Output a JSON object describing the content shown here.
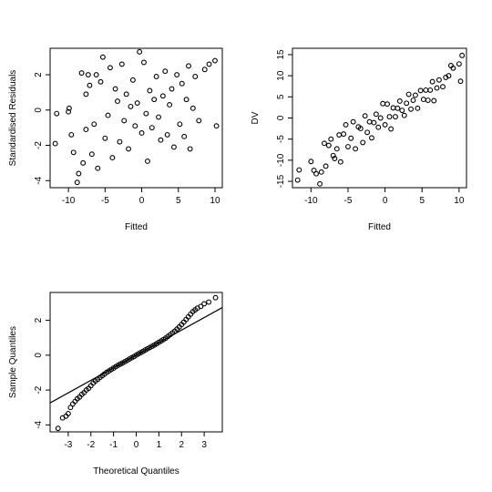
{
  "chart_data": [
    {
      "type": "scatter",
      "xlabel": "Fitted",
      "ylabel": "Standardised Residuals",
      "xlim": [
        -12.5,
        11
      ],
      "ylim": [
        -4.4,
        3.5
      ],
      "x_ticks": [
        -10,
        -5,
        0,
        5,
        10
      ],
      "y_ticks": [
        -4,
        -2,
        0,
        2
      ],
      "grid": false,
      "points": [
        [
          -11.6,
          -0.2
        ],
        [
          -11.8,
          -1.9
        ],
        [
          -10.0,
          -0.1
        ],
        [
          -9.9,
          0.1
        ],
        [
          -9.6,
          -1.4
        ],
        [
          -9.3,
          -2.4
        ],
        [
          -8.8,
          -4.1
        ],
        [
          -8.6,
          -3.6
        ],
        [
          -8.2,
          2.1
        ],
        [
          -8.0,
          -3.0
        ],
        [
          -7.6,
          0.9
        ],
        [
          -7.6,
          -1.1
        ],
        [
          -7.3,
          2.0
        ],
        [
          -7.1,
          1.4
        ],
        [
          -6.8,
          -2.5
        ],
        [
          -6.5,
          -0.8
        ],
        [
          -6.2,
          2.0
        ],
        [
          -6.0,
          -3.3
        ],
        [
          -5.6,
          1.6
        ],
        [
          -5.3,
          3.0
        ],
        [
          -5.0,
          -1.6
        ],
        [
          -4.6,
          -0.3
        ],
        [
          -4.3,
          2.4
        ],
        [
          -4.0,
          -2.7
        ],
        [
          -3.6,
          1.2
        ],
        [
          -3.3,
          0.5
        ],
        [
          -3.0,
          -1.8
        ],
        [
          -2.7,
          2.6
        ],
        [
          -2.4,
          -0.6
        ],
        [
          -2.1,
          0.9
        ],
        [
          -1.8,
          -2.2
        ],
        [
          -1.5,
          0.2
        ],
        [
          -1.2,
          1.7
        ],
        [
          -0.9,
          -0.9
        ],
        [
          -0.6,
          0.4
        ],
        [
          -0.3,
          3.3
        ],
        [
          0.0,
          -1.3
        ],
        [
          0.3,
          2.7
        ],
        [
          0.6,
          -0.2
        ],
        [
          0.8,
          -2.9
        ],
        [
          1.1,
          1.1
        ],
        [
          1.4,
          -1.0
        ],
        [
          1.7,
          0.6
        ],
        [
          2.0,
          1.9
        ],
        [
          2.3,
          -0.4
        ],
        [
          2.6,
          -1.7
        ],
        [
          2.9,
          0.8
        ],
        [
          3.2,
          2.2
        ],
        [
          3.5,
          -1.4
        ],
        [
          3.8,
          0.3
        ],
        [
          4.1,
          1.2
        ],
        [
          4.4,
          -2.1
        ],
        [
          4.8,
          2.0
        ],
        [
          5.2,
          -0.8
        ],
        [
          5.5,
          1.5
        ],
        [
          5.8,
          -1.5
        ],
        [
          6.1,
          0.6
        ],
        [
          6.4,
          2.5
        ],
        [
          6.6,
          -2.2
        ],
        [
          7.0,
          0.1
        ],
        [
          7.3,
          1.9
        ],
        [
          7.8,
          -0.6
        ],
        [
          8.6,
          2.3
        ],
        [
          9.2,
          2.6
        ],
        [
          10.0,
          2.8
        ],
        [
          10.2,
          -0.9
        ]
      ]
    },
    {
      "type": "scatter",
      "xlabel": "Fitted",
      "ylabel": "DV",
      "xlim": [
        -12.5,
        11
      ],
      "ylim": [
        -16.5,
        16.5
      ],
      "x_ticks": [
        -10,
        -5,
        0,
        5,
        10
      ],
      "y_ticks": [
        -15,
        -10,
        -5,
        0,
        5,
        10,
        15
      ],
      "grid": false,
      "points": [
        [
          -11.6,
          -12.3
        ],
        [
          -11.8,
          -14.7
        ],
        [
          -10.0,
          -10.3
        ],
        [
          -9.6,
          -12.4
        ],
        [
          -9.3,
          -13.2
        ],
        [
          -8.8,
          -15.6
        ],
        [
          -8.6,
          -12.8
        ],
        [
          -8.2,
          -6.0
        ],
        [
          -8.0,
          -11.4
        ],
        [
          -7.6,
          -6.5
        ],
        [
          -7.3,
          -5.0
        ],
        [
          -7.0,
          -8.9
        ],
        [
          -6.8,
          -9.6
        ],
        [
          -6.5,
          -7.3
        ],
        [
          -6.2,
          -4.0
        ],
        [
          -6.0,
          -10.4
        ],
        [
          -5.6,
          -3.8
        ],
        [
          -5.3,
          -1.6
        ],
        [
          -5.0,
          -6.8
        ],
        [
          -4.6,
          -4.8
        ],
        [
          -4.3,
          -0.9
        ],
        [
          -4.0,
          -7.3
        ],
        [
          -3.6,
          -2.1
        ],
        [
          -3.3,
          -2.5
        ],
        [
          -3.0,
          -5.8
        ],
        [
          -2.7,
          0.5
        ],
        [
          -2.4,
          -3.4
        ],
        [
          -2.1,
          -0.9
        ],
        [
          -1.8,
          -4.7
        ],
        [
          -1.5,
          -1.1
        ],
        [
          -1.2,
          0.9
        ],
        [
          -0.9,
          -2.2
        ],
        [
          -0.6,
          0.0
        ],
        [
          -0.3,
          3.4
        ],
        [
          0.0,
          -1.6
        ],
        [
          0.3,
          3.3
        ],
        [
          0.6,
          0.3
        ],
        [
          0.8,
          -2.6
        ],
        [
          1.1,
          2.4
        ],
        [
          1.4,
          0.3
        ],
        [
          1.7,
          2.3
        ],
        [
          2.0,
          4.0
        ],
        [
          2.3,
          1.8
        ],
        [
          2.6,
          0.6
        ],
        [
          2.9,
          3.5
        ],
        [
          3.2,
          5.6
        ],
        [
          3.5,
          2.1
        ],
        [
          3.8,
          4.2
        ],
        [
          4.1,
          5.4
        ],
        [
          4.4,
          2.3
        ],
        [
          4.8,
          6.5
        ],
        [
          5.2,
          4.4
        ],
        [
          5.5,
          6.6
        ],
        [
          5.8,
          4.2
        ],
        [
          6.1,
          6.6
        ],
        [
          6.4,
          8.6
        ],
        [
          6.6,
          4.1
        ],
        [
          7.0,
          7.1
        ],
        [
          7.3,
          9.0
        ],
        [
          7.8,
          7.4
        ],
        [
          8.2,
          9.6
        ],
        [
          8.6,
          10.0
        ],
        [
          8.9,
          12.4
        ],
        [
          9.2,
          11.8
        ],
        [
          10.0,
          12.8
        ],
        [
          10.2,
          8.7
        ],
        [
          10.4,
          14.8
        ]
      ]
    },
    {
      "type": "scatter",
      "xlabel": "Theoretical Quantiles",
      "ylabel": "Sample Quantiles",
      "xlim": [
        -3.8,
        3.8
      ],
      "ylim": [
        -4.4,
        3.6
      ],
      "x_ticks": [
        -3,
        -2,
        -1,
        0,
        1,
        2,
        3
      ],
      "y_ticks": [
        -4,
        -2,
        0,
        2
      ],
      "grid": false,
      "reference_line": {
        "intercept": 0,
        "slope": 0.72
      },
      "points": [
        [
          -3.45,
          -4.2
        ],
        [
          -3.25,
          -3.6
        ],
        [
          -3.1,
          -3.5
        ],
        [
          -3.0,
          -3.35
        ],
        [
          -2.9,
          -3.0
        ],
        [
          -2.8,
          -2.8
        ],
        [
          -2.7,
          -2.65
        ],
        [
          -2.6,
          -2.5
        ],
        [
          -2.5,
          -2.4
        ],
        [
          -2.4,
          -2.25
        ],
        [
          -2.3,
          -2.15
        ],
        [
          -2.2,
          -2.0
        ],
        [
          -2.1,
          -1.9
        ],
        [
          -2.0,
          -1.75
        ],
        [
          -1.9,
          -1.6
        ],
        [
          -1.8,
          -1.48
        ],
        [
          -1.7,
          -1.38
        ],
        [
          -1.6,
          -1.28
        ],
        [
          -1.5,
          -1.18
        ],
        [
          -1.4,
          -1.08
        ],
        [
          -1.3,
          -0.98
        ],
        [
          -1.2,
          -0.9
        ],
        [
          -1.1,
          -0.82
        ],
        [
          -1.0,
          -0.74
        ],
        [
          -0.9,
          -0.66
        ],
        [
          -0.8,
          -0.58
        ],
        [
          -0.7,
          -0.51
        ],
        [
          -0.6,
          -0.44
        ],
        [
          -0.5,
          -0.37
        ],
        [
          -0.4,
          -0.3
        ],
        [
          -0.3,
          -0.22
        ],
        [
          -0.2,
          -0.15
        ],
        [
          -0.1,
          -0.08
        ],
        [
          0.0,
          0.0
        ],
        [
          0.1,
          0.08
        ],
        [
          0.2,
          0.15
        ],
        [
          0.3,
          0.22
        ],
        [
          0.4,
          0.3
        ],
        [
          0.5,
          0.37
        ],
        [
          0.6,
          0.44
        ],
        [
          0.7,
          0.51
        ],
        [
          0.8,
          0.58
        ],
        [
          0.9,
          0.66
        ],
        [
          1.0,
          0.74
        ],
        [
          1.1,
          0.82
        ],
        [
          1.2,
          0.9
        ],
        [
          1.3,
          0.98
        ],
        [
          1.4,
          1.08
        ],
        [
          1.5,
          1.18
        ],
        [
          1.6,
          1.28
        ],
        [
          1.7,
          1.38
        ],
        [
          1.8,
          1.5
        ],
        [
          1.9,
          1.62
        ],
        [
          2.0,
          1.76
        ],
        [
          2.1,
          1.9
        ],
        [
          2.2,
          2.05
        ],
        [
          2.3,
          2.2
        ],
        [
          2.4,
          2.35
        ],
        [
          2.5,
          2.5
        ],
        [
          2.6,
          2.6
        ],
        [
          2.7,
          2.7
        ],
        [
          2.85,
          2.8
        ],
        [
          3.0,
          2.95
        ],
        [
          3.2,
          3.05
        ],
        [
          3.5,
          3.3
        ]
      ]
    }
  ]
}
